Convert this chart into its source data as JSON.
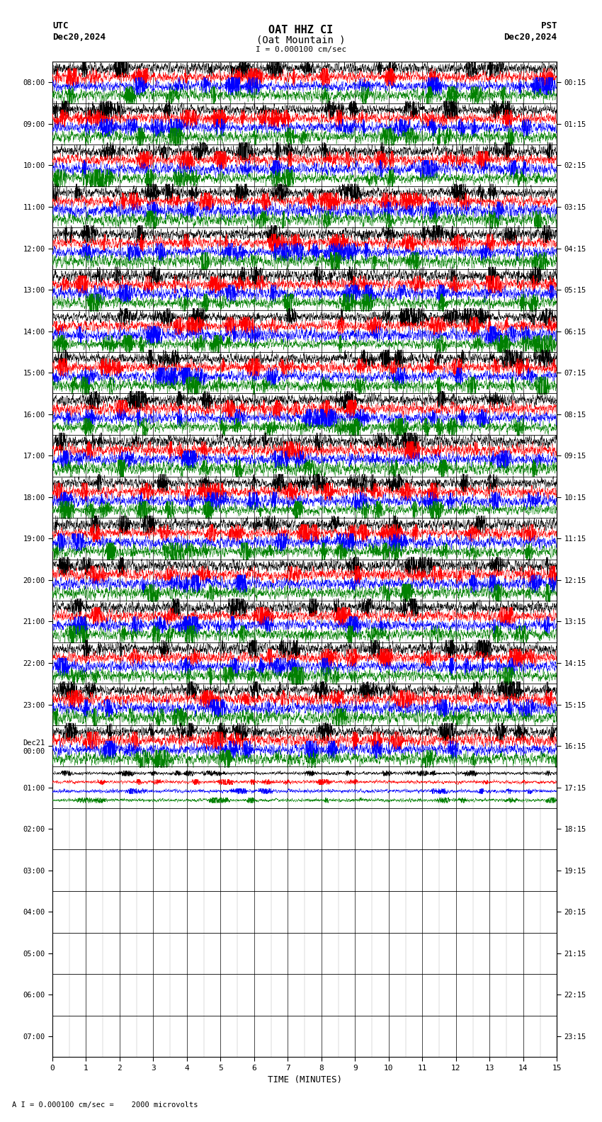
{
  "title_line1": "OAT HHZ CI",
  "title_line2": "(Oat Mountain )",
  "scale_label": "I = 0.000100 cm/sec",
  "utc_label": "UTC",
  "pst_label": "PST",
  "date_left": "Dec20,2024",
  "date_right": "Dec20,2024",
  "bottom_label": "A I = 0.000100 cm/sec =    2000 microvolts",
  "xlabel": "TIME (MINUTES)",
  "utc_times_left": [
    "08:00",
    "09:00",
    "10:00",
    "11:00",
    "12:00",
    "13:00",
    "14:00",
    "15:00",
    "16:00",
    "17:00",
    "18:00",
    "19:00",
    "20:00",
    "21:00",
    "22:00",
    "23:00",
    "Dec21\n00:00",
    "01:00",
    "02:00",
    "03:00",
    "04:00",
    "05:00",
    "06:00",
    "07:00"
  ],
  "pst_times_right": [
    "00:15",
    "01:15",
    "02:15",
    "03:15",
    "04:15",
    "05:15",
    "06:15",
    "07:15",
    "08:15",
    "09:15",
    "10:15",
    "11:15",
    "12:15",
    "13:15",
    "14:15",
    "15:15",
    "16:15",
    "17:15",
    "18:15",
    "19:15",
    "20:15",
    "21:15",
    "22:15",
    "23:15"
  ],
  "n_rows": 24,
  "n_active_rows": 18,
  "n_active_full": 17,
  "minutes": 15,
  "colors": [
    "black",
    "red",
    "blue",
    "green"
  ],
  "bg_color": "white",
  "random_seed": 42,
  "fig_width": 8.5,
  "fig_height": 15.84,
  "dpi": 100
}
